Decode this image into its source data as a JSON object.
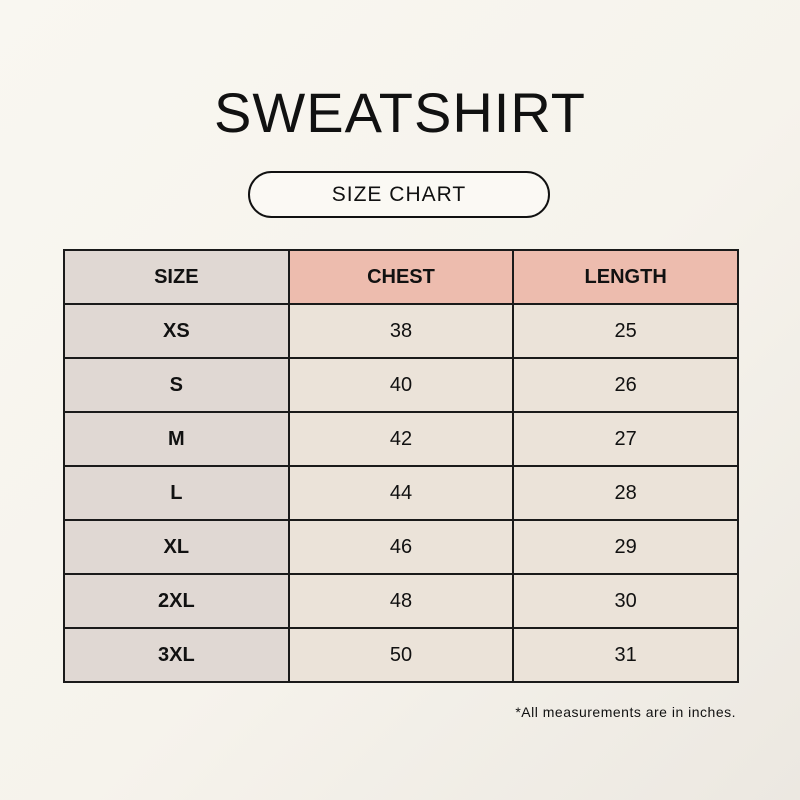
{
  "title": "SWEATSHIRT",
  "subtitle": "SIZE CHART",
  "table": {
    "headers": [
      "SIZE",
      "CHEST",
      "LENGTH"
    ],
    "rows": [
      [
        "XS",
        "38",
        "25"
      ],
      [
        "S",
        "40",
        "26"
      ],
      [
        "M",
        "42",
        "27"
      ],
      [
        "L",
        "44",
        "28"
      ],
      [
        "XL",
        "46",
        "29"
      ],
      [
        "2XL",
        "48",
        "30"
      ],
      [
        "3XL",
        "50",
        "31"
      ]
    ]
  },
  "footnote": "*All measurements are in inches.",
  "colors": {
    "size_column": "#e0d8d3",
    "header_accent": "#edbcae",
    "cell": "#ebe3d9"
  }
}
